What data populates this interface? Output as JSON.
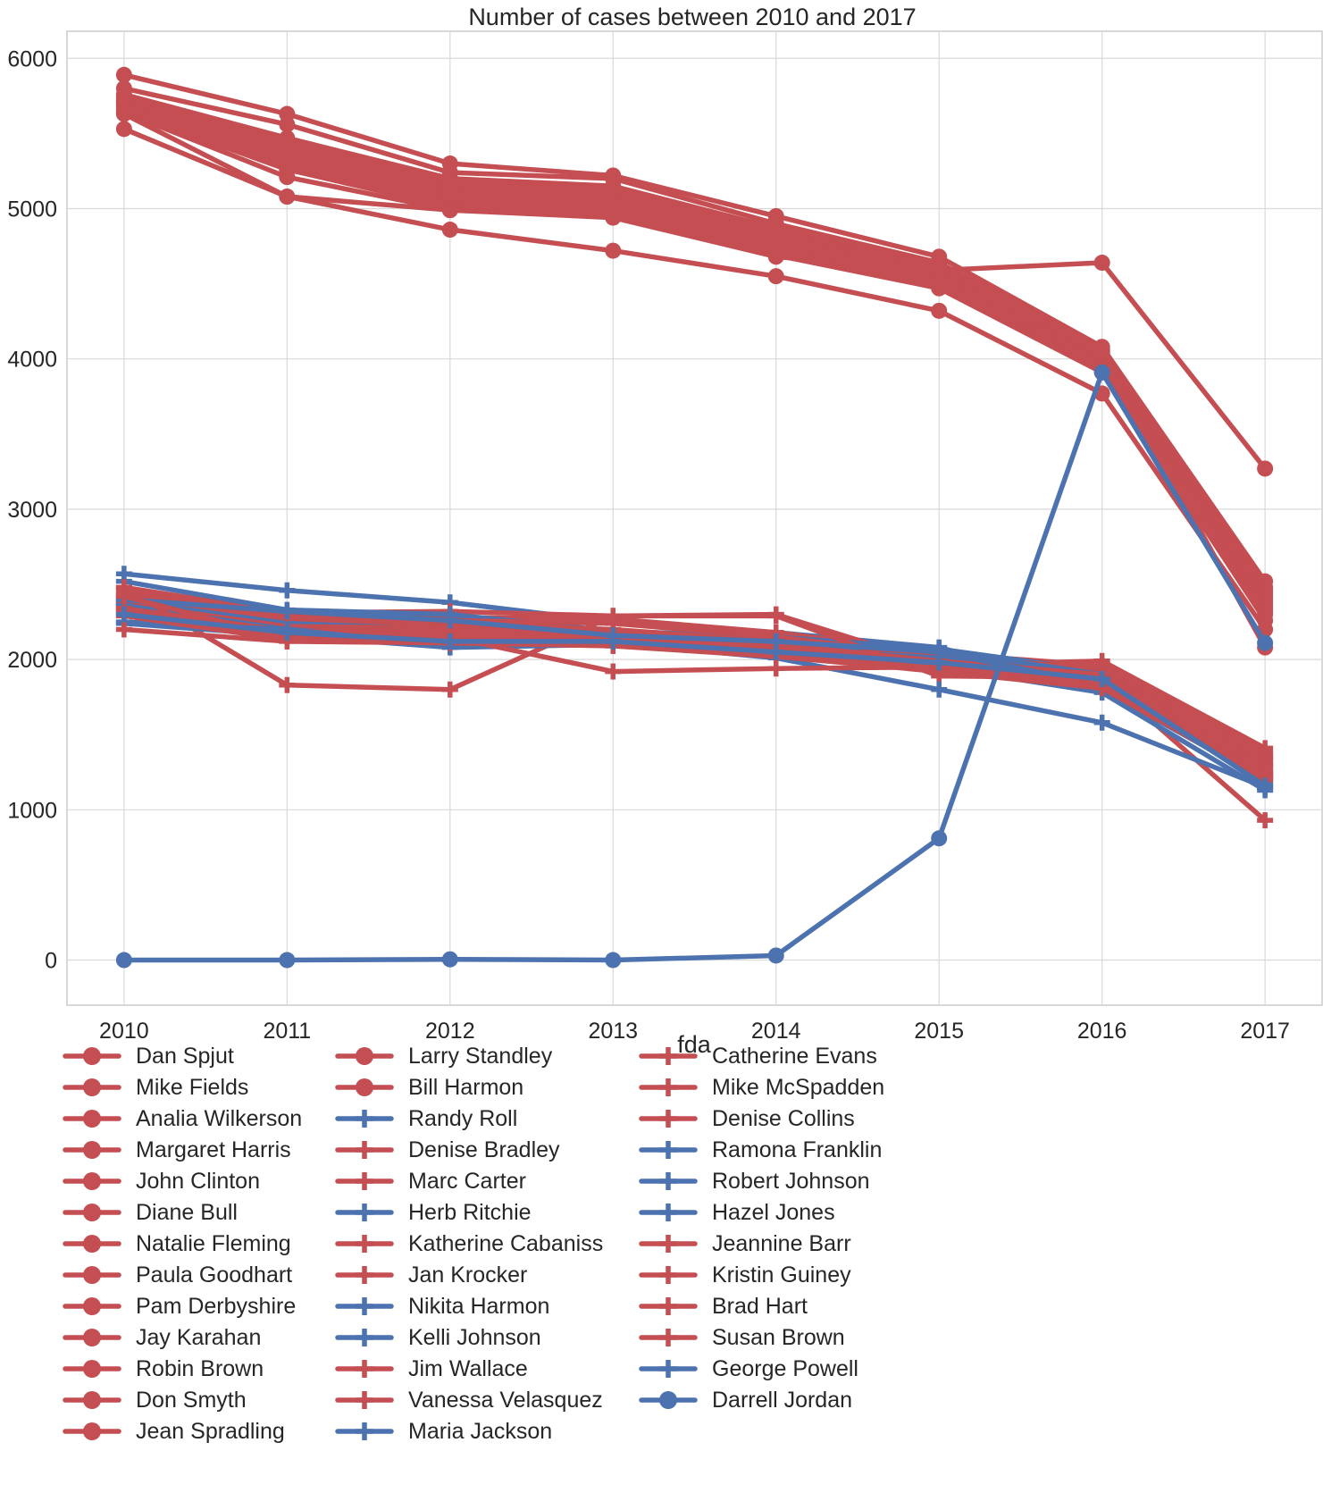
{
  "chart_data": {
    "type": "line",
    "title": "Number of cases between 2010 and 2017",
    "xlabel": "fda",
    "ylabel": "",
    "x": [
      "2010",
      "2011",
      "2012",
      "2013",
      "2014",
      "2015",
      "2016",
      "2017"
    ],
    "xlim": [
      2009.65,
      2017.35
    ],
    "ylim": [
      -300,
      6180
    ],
    "yticks": [
      0,
      1000,
      2000,
      3000,
      4000,
      5000,
      6000
    ],
    "grid": true,
    "legend_position": "below, 3 columns",
    "colors": {
      "red": "#c44e52",
      "blue": "#4c72b0"
    },
    "series": [
      {
        "name": "Dan Spjut",
        "color": "red",
        "marker": "circle",
        "values": [
          5890,
          5630,
          5300,
          5220,
          4950,
          4680,
          4080,
          2520
        ]
      },
      {
        "name": "Mike Fields",
        "color": "red",
        "marker": "circle",
        "values": [
          5800,
          5560,
          5240,
          5200,
          4900,
          4640,
          4060,
          2480
        ]
      },
      {
        "name": "Analia Wilkerson",
        "color": "red",
        "marker": "circle",
        "values": [
          5760,
          5470,
          5200,
          5150,
          4870,
          4620,
          4050,
          2460
        ]
      },
      {
        "name": "Margaret Harris",
        "color": "red",
        "marker": "circle",
        "values": [
          5740,
          5440,
          5170,
          5140,
          4850,
          4600,
          4030,
          2440
        ]
      },
      {
        "name": "John Clinton",
        "color": "red",
        "marker": "circle",
        "values": [
          5720,
          5420,
          5150,
          5110,
          4830,
          4580,
          4020,
          2420
        ]
      },
      {
        "name": "Diane Bull",
        "color": "red",
        "marker": "circle",
        "values": [
          5710,
          5400,
          5130,
          5090,
          4810,
          4560,
          4000,
          2400
        ]
      },
      {
        "name": "Natalie Fleming",
        "color": "red",
        "marker": "circle",
        "values": [
          5700,
          5380,
          5110,
          5070,
          4790,
          4550,
          3990,
          2380
        ]
      },
      {
        "name": "Paula Goodhart",
        "color": "red",
        "marker": "circle",
        "values": [
          5690,
          5350,
          5090,
          5050,
          4770,
          4530,
          3970,
          2360
        ]
      },
      {
        "name": "Pam Derbyshire",
        "color": "red",
        "marker": "circle",
        "values": [
          5680,
          5320,
          5060,
          5030,
          4750,
          4520,
          3960,
          2340
        ]
      },
      {
        "name": "Jay Karahan",
        "color": "red",
        "marker": "circle",
        "values": [
          5660,
          5290,
          5030,
          5000,
          4730,
          4500,
          3950,
          2320
        ]
      },
      {
        "name": "Robin Brown",
        "color": "red",
        "marker": "circle",
        "values": [
          5650,
          5260,
          5010,
          4980,
          4710,
          4490,
          3930,
          2300
        ]
      },
      {
        "name": "Don Smyth",
        "color": "red",
        "marker": "circle",
        "values": [
          5640,
          5210,
          4990,
          4950,
          4690,
          4470,
          3910,
          2260
        ]
      },
      {
        "name": "Jean Spradling",
        "color": "red",
        "marker": "circle",
        "values": [
          5630,
          5080,
          4990,
          4940,
          4680,
          4590,
          4640,
          3270
        ]
      },
      {
        "name": "Larry Standley",
        "color": "red",
        "marker": "circle",
        "values": [
          5530,
          5080,
          4860,
          4720,
          4550,
          4320,
          3770,
          2200
        ]
      },
      {
        "name": "Bill Harmon",
        "color": "red",
        "marker": "circle",
        "values": [
          5720,
          5430,
          5160,
          5120,
          4840,
          4610,
          4040,
          2080
        ]
      },
      {
        "name": "Randy Roll",
        "color": "blue",
        "marker": "plus",
        "values": [
          2570,
          2460,
          2380,
          2250,
          2180,
          2080,
          1800,
          1200
        ]
      },
      {
        "name": "Denise Bradley",
        "color": "red",
        "marker": "plus",
        "values": [
          2480,
          2310,
          2320,
          2290,
          2300,
          1960,
          1990,
          1410
        ]
      },
      {
        "name": "Marc Carter",
        "color": "red",
        "marker": "plus",
        "values": [
          2450,
          2280,
          2280,
          2270,
          2180,
          2040,
          1960,
          1380
        ]
      },
      {
        "name": "Herb Ritchie",
        "color": "blue",
        "marker": "plus",
        "values": [
          2520,
          2330,
          2300,
          2190,
          2150,
          2070,
          1920,
          1340
        ]
      },
      {
        "name": "Katherine Cabaniss",
        "color": "red",
        "marker": "plus",
        "values": [
          2430,
          2260,
          2260,
          2240,
          2150,
          2020,
          1940,
          1360
        ]
      },
      {
        "name": "Jan Krocker",
        "color": "red",
        "marker": "plus",
        "values": [
          2410,
          2240,
          2240,
          2200,
          2120,
          2000,
          1920,
          1340
        ]
      },
      {
        "name": "Nikita Harmon",
        "color": "blue",
        "marker": "plus",
        "values": [
          2390,
          2240,
          2200,
          2150,
          2100,
          2060,
          1900,
          1300
        ]
      },
      {
        "name": "Kelli Johnson",
        "color": "blue",
        "marker": "plus",
        "values": [
          2380,
          2220,
          2160,
          2160,
          2080,
          2010,
          1880,
          1250
        ]
      },
      {
        "name": "Jim Wallace",
        "color": "red",
        "marker": "plus",
        "values": [
          2370,
          2220,
          2210,
          2180,
          2100,
          1990,
          1900,
          1310
        ]
      },
      {
        "name": "Vanessa Velasquez",
        "color": "red",
        "marker": "plus",
        "values": [
          2350,
          2200,
          2190,
          2170,
          2080,
          1980,
          1880,
          1290
        ]
      },
      {
        "name": "Maria Jackson",
        "color": "blue",
        "marker": "plus",
        "values": [
          2360,
          2200,
          2130,
          2130,
          2060,
          1970,
          1860,
          1210
        ]
      },
      {
        "name": "Catherine Evans",
        "color": "red",
        "marker": "plus",
        "values": [
          2340,
          2190,
          2170,
          2150,
          2070,
          1970,
          1870,
          1270
        ]
      },
      {
        "name": "Mike McSpadden",
        "color": "red",
        "marker": "plus",
        "values": [
          2330,
          2170,
          2150,
          2130,
          2050,
          1950,
          1850,
          1250
        ]
      },
      {
        "name": "Denise Collins",
        "color": "red",
        "marker": "plus",
        "values": [
          2480,
          1830,
          1800,
          2290,
          2290,
          1890,
          1880,
          930
        ]
      },
      {
        "name": "Ramona Franklin",
        "color": "blue",
        "marker": "plus",
        "values": [
          2250,
          2200,
          2090,
          2110,
          2010,
          1800,
          1580,
          1150
        ]
      },
      {
        "name": "Robert Johnson",
        "color": "blue",
        "marker": "plus",
        "values": [
          2240,
          2160,
          2080,
          2100,
          2030,
          1950,
          1780,
          1130
        ]
      },
      {
        "name": "Hazel Jones",
        "color": "blue",
        "marker": "plus",
        "values": [
          2400,
          2320,
          2260,
          2160,
          2120,
          2050,
          1830,
          1180
        ]
      },
      {
        "name": "Jeannine Barr",
        "color": "red",
        "marker": "plus",
        "values": [
          2310,
          2150,
          2130,
          2110,
          2040,
          1940,
          1830,
          1230
        ]
      },
      {
        "name": "Kristin Guiney",
        "color": "red",
        "marker": "plus",
        "values": [
          2290,
          2130,
          2120,
          2100,
          2030,
          1930,
          1820,
          1220
        ]
      },
      {
        "name": "Brad Hart",
        "color": "red",
        "marker": "plus",
        "values": [
          2420,
          2140,
          2150,
          1920,
          1940,
          1950,
          1840,
          1240
        ]
      },
      {
        "name": "Susan Brown",
        "color": "red",
        "marker": "plus",
        "values": [
          2200,
          2120,
          2110,
          2090,
          2020,
          1920,
          1810,
          1200
        ]
      },
      {
        "name": "George Powell",
        "color": "blue",
        "marker": "plus",
        "values": [
          2300,
          2180,
          2120,
          2120,
          2050,
          1980,
          1870,
          1160
        ]
      },
      {
        "name": "Darrell Jordan",
        "color": "blue",
        "marker": "circle",
        "values": [
          0,
          0,
          5,
          0,
          30,
          810,
          3910,
          2110
        ]
      }
    ]
  }
}
